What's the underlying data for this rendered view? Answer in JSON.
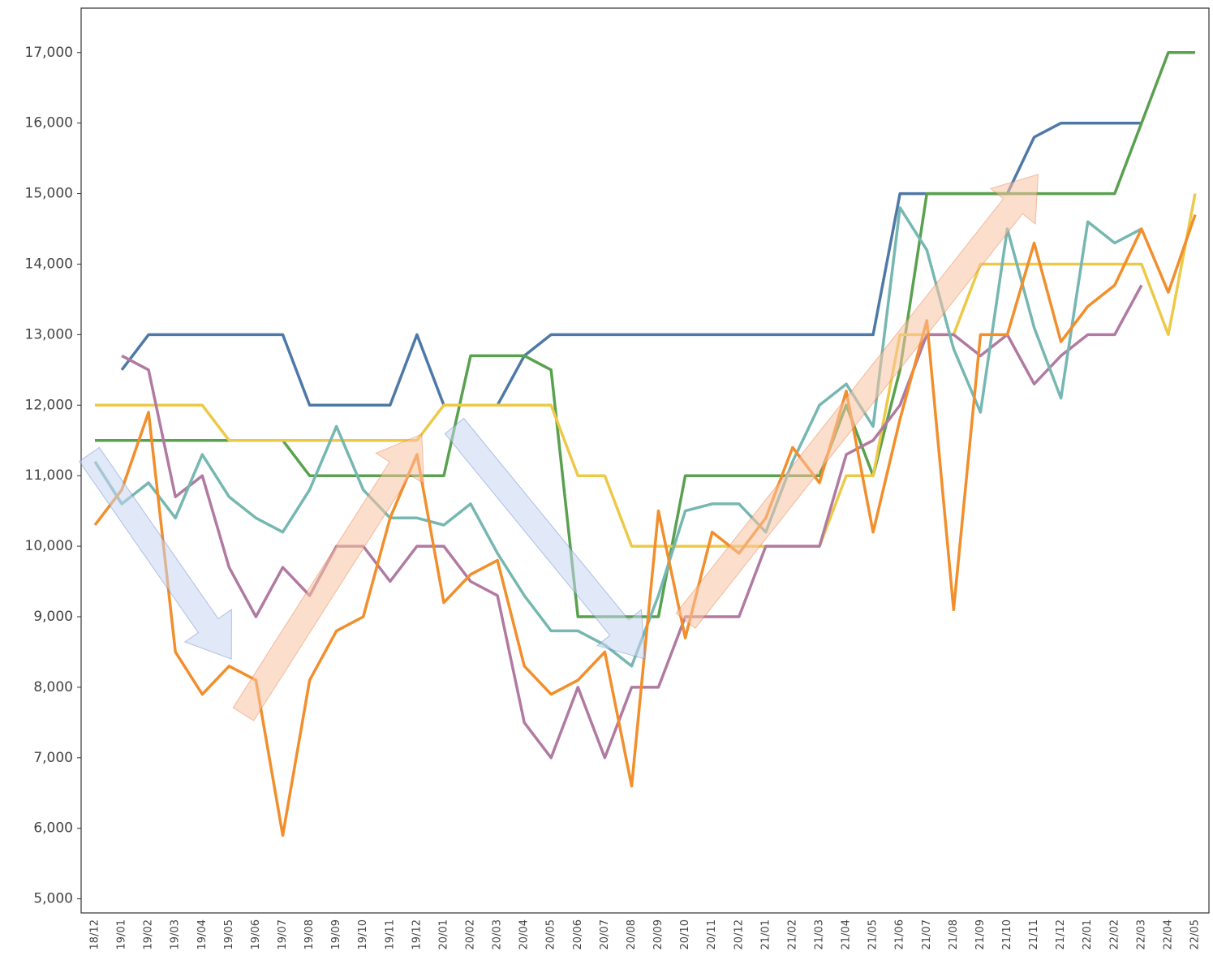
{
  "chart_data": {
    "type": "line",
    "categories": [
      "18/12",
      "19/01",
      "19/02",
      "19/03",
      "19/04",
      "19/05",
      "19/06",
      "19/07",
      "19/08",
      "19/09",
      "19/10",
      "19/11",
      "19/12",
      "20/01",
      "20/02",
      "20/03",
      "20/04",
      "20/05",
      "20/06",
      "20/07",
      "20/08",
      "20/09",
      "20/10",
      "20/11",
      "20/12",
      "21/01",
      "21/02",
      "21/03",
      "21/04",
      "21/05",
      "21/06",
      "21/07",
      "21/08",
      "21/09",
      "21/10",
      "21/11",
      "21/12",
      "22/01",
      "22/02",
      "22/03",
      "22/04",
      "22/05"
    ],
    "series": [
      {
        "color": "#4e79a7",
        "values": [
          null,
          12500,
          13000,
          13000,
          13000,
          13000,
          13000,
          13000,
          12000,
          12000,
          12000,
          12000,
          13000,
          12000,
          12000,
          12000,
          12700,
          13000,
          13000,
          13000,
          13000,
          13000,
          13000,
          13000,
          13000,
          13000,
          13000,
          13000,
          13000,
          13000,
          15000,
          15000,
          15000,
          15000,
          15000,
          15800,
          16000,
          16000,
          16000,
          16000,
          null,
          null
        ]
      },
      {
        "color": "#59a14f",
        "values": [
          11500,
          11500,
          11500,
          11500,
          11500,
          11500,
          11500,
          11500,
          11000,
          11000,
          11000,
          11000,
          11000,
          11000,
          12700,
          12700,
          12700,
          12500,
          9000,
          9000,
          9000,
          9000,
          11000,
          11000,
          11000,
          11000,
          11000,
          11000,
          12000,
          11000,
          12500,
          15000,
          15000,
          15000,
          15000,
          15000,
          15000,
          15000,
          15000,
          16000,
          17000,
          17000
        ]
      },
      {
        "color": "#edc948",
        "values": [
          12000,
          12000,
          12000,
          12000,
          12000,
          11500,
          11500,
          11500,
          11500,
          11500,
          11500,
          11500,
          11500,
          12000,
          12000,
          12000,
          12000,
          12000,
          11000,
          11000,
          10000,
          10000,
          10000,
          10000,
          10000,
          10000,
          10000,
          10000,
          11000,
          11000,
          13000,
          13000,
          13000,
          14000,
          14000,
          14000,
          14000,
          14000,
          14000,
          14000,
          13000,
          15000
        ]
      },
      {
        "color": "#b07aa1",
        "values": [
          null,
          12700,
          12500,
          10700,
          11000,
          9700,
          9000,
          9700,
          9300,
          10000,
          10000,
          9500,
          10000,
          10000,
          9500,
          9300,
          7500,
          7000,
          8000,
          7000,
          8000,
          8000,
          9000,
          9000,
          9000,
          10000,
          10000,
          10000,
          11300,
          11500,
          12000,
          13000,
          13000,
          12700,
          13000,
          12300,
          12700,
          13000,
          13000,
          13700,
          null,
          null
        ]
      },
      {
        "color": "#76b7b2",
        "values": [
          11200,
          10600,
          10900,
          10400,
          11300,
          10700,
          10400,
          10200,
          10800,
          11700,
          10800,
          10400,
          10400,
          10300,
          10600,
          9900,
          9300,
          8800,
          8800,
          8600,
          8300,
          9300,
          10500,
          10600,
          10600,
          10200,
          11200,
          12000,
          12300,
          11700,
          14800,
          14200,
          12800,
          11900,
          14500,
          13100,
          12100,
          14600,
          14300,
          14500,
          null,
          null
        ]
      },
      {
        "color": "#f28e2b",
        "values": [
          10300,
          10800,
          11900,
          8500,
          7900,
          8300,
          8100,
          5900,
          8100,
          8800,
          9000,
          10400,
          11300,
          9200,
          9600,
          9800,
          8300,
          7900,
          8100,
          8500,
          6600,
          10500,
          8700,
          10200,
          9900,
          10400,
          11400,
          10900,
          12200,
          10200,
          11800,
          13200,
          9100,
          13000,
          13000,
          14300,
          12900,
          13400,
          13700,
          14500,
          13600,
          14700
        ]
      }
    ],
    "ylim": [
      4800,
      17630
    ],
    "yticks": [
      {
        "value": 5000,
        "label": "5,000"
      },
      {
        "value": 6000,
        "label": "6,000"
      },
      {
        "value": 7000,
        "label": "7,000"
      },
      {
        "value": 8000,
        "label": "8,000"
      },
      {
        "value": 9000,
        "label": "9,000"
      },
      {
        "value": 10000,
        "label": "10,000"
      },
      {
        "value": 11000,
        "label": "11,000"
      },
      {
        "value": 12000,
        "label": "12,000"
      },
      {
        "value": 13000,
        "label": "13,000"
      },
      {
        "value": 14000,
        "label": "14,000"
      },
      {
        "value": 15000,
        "label": "15,000"
      },
      {
        "value": 16000,
        "label": "16,000"
      },
      {
        "value": 17000,
        "label": "17,000"
      }
    ]
  }
}
